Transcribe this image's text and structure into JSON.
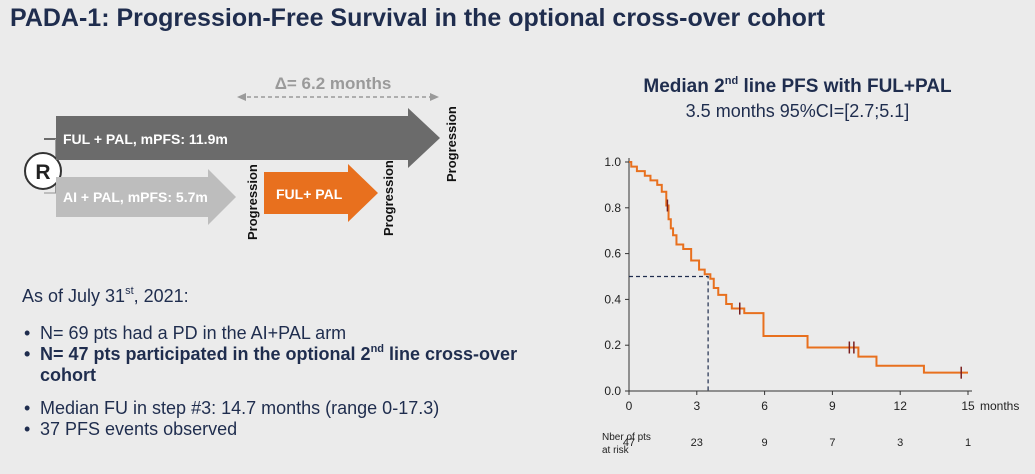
{
  "slide": {
    "title": "PADA-1: Progression-Free Survival in the optional cross-over cohort"
  },
  "schema": {
    "randomization": "R",
    "delta": "Δ= 6.2 months",
    "arm_top": "FUL + PAL, mPFS: 11.9m",
    "arm_bottom": "AI + PAL, mPFS: 5.7m",
    "crossover": "FUL+ PAL",
    "progression": "Progression",
    "colors": {
      "top_arrow": "#6b6b6b",
      "bottom_arrow": "#bdbdbd",
      "crossover_arrow": "#e8701e"
    }
  },
  "notes": {
    "asof_pre": "As of July 31",
    "asof_sup": "st",
    "asof_post": ", 2021:",
    "b1": "N= 69 pts had a PD in the AI+PAL arm",
    "b2_pre": "N= 47 pts participated in the optional 2",
    "b2_sup": "nd",
    "b2_post": " line cross-over cohort",
    "b3": "Median FU in step #3: 14.7 months (range 0-17.3)",
    "b4": "37 PFS events observed"
  },
  "km_header": {
    "line1_pre": "Median 2",
    "line1_sup": "nd",
    "line1_post": " line PFS with FUL+PAL",
    "line2": "3.5 months 95%CI=[2.7;5.1]"
  },
  "chart_data": {
    "type": "line",
    "step": true,
    "xlim": [
      0,
      15
    ],
    "ylim": [
      0,
      1.0
    ],
    "xticks": [
      0,
      3,
      6,
      9,
      12,
      15
    ],
    "yticks": [
      0.0,
      0.2,
      0.4,
      0.6,
      0.8,
      1.0
    ],
    "xtick_labels": [
      "0",
      "3",
      "6",
      "9",
      "12",
      "15"
    ],
    "ytick_labels": [
      "0.0",
      "0.2",
      "0.4",
      "0.6",
      "0.8",
      "1.0"
    ],
    "x_unit_label": "months",
    "series": [
      {
        "color": "#e8701e",
        "x": [
          0,
          0.1,
          0.35,
          0.7,
          0.95,
          1.25,
          1.45,
          1.65,
          1.75,
          1.85,
          1.95,
          2.1,
          2.4,
          2.75,
          3.1,
          3.35,
          3.6,
          3.75,
          3.95,
          4.3,
          4.55,
          5.1,
          5.95,
          7.9,
          10.15,
          10.95,
          13.05,
          15.0
        ],
        "y": [
          1.0,
          0.98,
          0.96,
          0.94,
          0.92,
          0.9,
          0.87,
          0.81,
          0.75,
          0.71,
          0.68,
          0.64,
          0.62,
          0.57,
          0.53,
          0.51,
          0.49,
          0.45,
          0.42,
          0.38,
          0.36,
          0.34,
          0.24,
          0.19,
          0.15,
          0.11,
          0.08,
          0.08
        ],
        "censored": [
          [
            1.7,
            0.81
          ],
          [
            4.9,
            0.36
          ],
          [
            9.75,
            0.19
          ],
          [
            9.95,
            0.19
          ],
          [
            14.7,
            0.08
          ]
        ]
      }
    ],
    "median": {
      "x": 3.5,
      "y": 0.5
    },
    "at_risk": {
      "label_line1": "Nber of pts",
      "label_line2": "at risk",
      "times": [
        0,
        3,
        6,
        9,
        12,
        15
      ],
      "values": [
        "47",
        "23",
        "9",
        "7",
        "3",
        "1"
      ]
    }
  }
}
